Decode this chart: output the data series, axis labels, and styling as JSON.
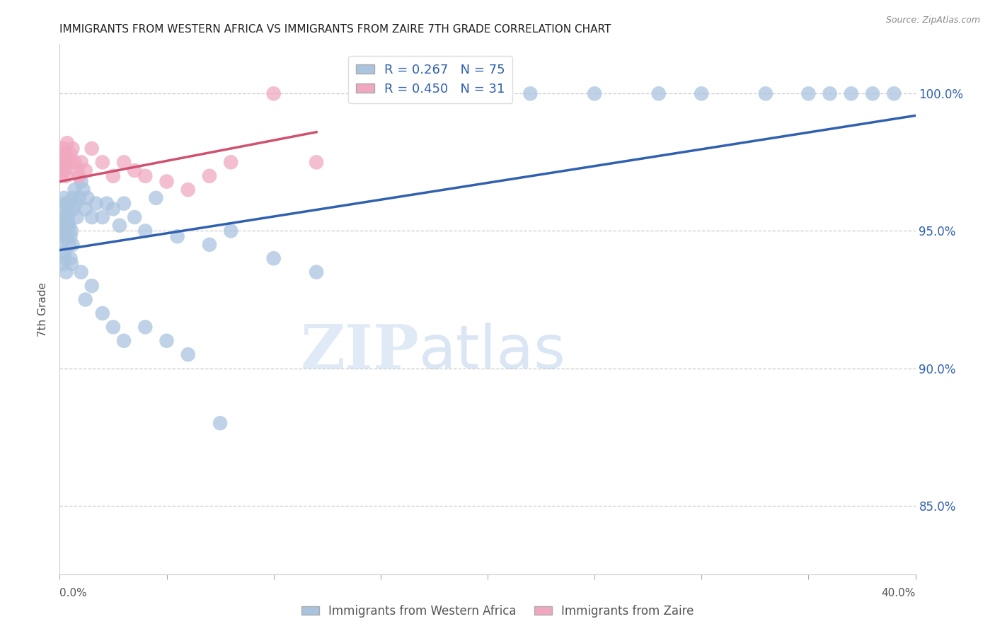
{
  "title": "IMMIGRANTS FROM WESTERN AFRICA VS IMMIGRANTS FROM ZAIRE 7TH GRADE CORRELATION CHART",
  "source": "Source: ZipAtlas.com",
  "ylabel": "7th Grade",
  "y_tick_vals": [
    85.0,
    90.0,
    95.0,
    100.0
  ],
  "x_min": 0.0,
  "x_max": 40.0,
  "y_min": 82.5,
  "y_max": 101.8,
  "blue_R": 0.267,
  "blue_N": 75,
  "pink_R": 0.45,
  "pink_N": 31,
  "blue_color": "#aac4df",
  "pink_color": "#f0a8bf",
  "blue_line_color": "#3060b0",
  "pink_line_color": "#d05070",
  "legend_blue_label": "Immigrants from Western Africa",
  "legend_pink_label": "Immigrants from Zaire",
  "watermark_zip": "ZIP",
  "watermark_atlas": "atlas",
  "blue_line_x0": 0.0,
  "blue_line_y0": 94.3,
  "blue_line_x1": 40.0,
  "blue_line_y1": 99.2,
  "pink_line_x0": 0.0,
  "pink_line_y0": 96.8,
  "pink_line_x1": 12.0,
  "pink_line_y1": 98.6,
  "blue_x": [
    0.05,
    0.08,
    0.1,
    0.12,
    0.15,
    0.18,
    0.2,
    0.22,
    0.25,
    0.28,
    0.3,
    0.35,
    0.38,
    0.4,
    0.45,
    0.5,
    0.55,
    0.6,
    0.65,
    0.7,
    0.75,
    0.8,
    0.9,
    1.0,
    1.1,
    1.2,
    1.3,
    1.5,
    1.7,
    2.0,
    2.2,
    2.5,
    2.8,
    3.0,
    3.5,
    4.0,
    4.5,
    5.5,
    7.0,
    8.0,
    10.0,
    12.0,
    15.0,
    18.0,
    20.0,
    22.0,
    25.0,
    28.0,
    30.0,
    33.0,
    35.0,
    36.0,
    37.0,
    38.0,
    39.0,
    0.15,
    0.2,
    0.25,
    0.3,
    0.35,
    0.4,
    0.45,
    0.5,
    0.55,
    0.6,
    1.0,
    1.2,
    1.5,
    2.0,
    2.5,
    3.0,
    4.0,
    5.0,
    6.0,
    7.5
  ],
  "blue_y": [
    94.5,
    95.0,
    95.3,
    95.0,
    94.8,
    95.5,
    96.2,
    95.8,
    96.0,
    95.5,
    95.2,
    96.0,
    95.5,
    95.8,
    95.2,
    94.8,
    95.0,
    96.2,
    95.8,
    96.5,
    96.0,
    95.5,
    96.2,
    96.8,
    96.5,
    95.8,
    96.2,
    95.5,
    96.0,
    95.5,
    96.0,
    95.8,
    95.2,
    96.0,
    95.5,
    95.0,
    96.2,
    94.8,
    94.5,
    95.0,
    94.0,
    93.5,
    100.0,
    100.0,
    100.0,
    100.0,
    100.0,
    100.0,
    100.0,
    100.0,
    100.0,
    100.0,
    100.0,
    100.0,
    100.0,
    93.8,
    94.2,
    94.0,
    93.5,
    94.8,
    95.2,
    94.5,
    94.0,
    93.8,
    94.5,
    93.5,
    92.5,
    93.0,
    92.0,
    91.5,
    91.0,
    91.5,
    91.0,
    90.5,
    88.0
  ],
  "pink_x": [
    0.05,
    0.1,
    0.12,
    0.15,
    0.18,
    0.2,
    0.22,
    0.25,
    0.28,
    0.3,
    0.35,
    0.4,
    0.5,
    0.6,
    0.7,
    0.8,
    0.9,
    1.0,
    1.2,
    1.5,
    2.0,
    2.5,
    3.0,
    3.5,
    4.0,
    5.0,
    6.0,
    7.0,
    8.0,
    10.0,
    12.0
  ],
  "pink_y": [
    97.0,
    97.5,
    97.2,
    97.8,
    98.0,
    97.5,
    97.2,
    97.8,
    97.5,
    97.0,
    98.2,
    97.5,
    97.8,
    98.0,
    97.5,
    97.2,
    97.0,
    97.5,
    97.2,
    98.0,
    97.5,
    97.0,
    97.5,
    97.2,
    97.0,
    96.8,
    96.5,
    97.0,
    97.5,
    100.0,
    97.5
  ]
}
